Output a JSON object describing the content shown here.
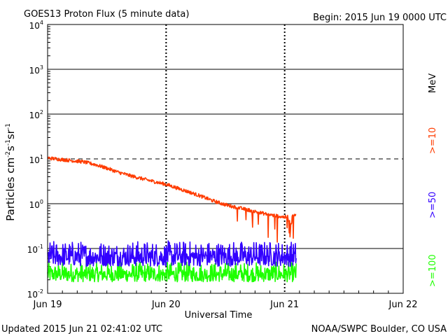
{
  "header": {
    "title": "GOES13 Proton Flux (5 minute data)",
    "begin": "Begin: 2015 Jun 19 0000 UTC"
  },
  "footer": {
    "updated": "Updated 2015 Jun 21 02:41:02 UTC",
    "credit": "NOAA/SWPC Boulder, CO USA"
  },
  "chart_data": {
    "type": "line",
    "title": "GOES13 Proton Flux (5 minute data)",
    "xlabel": "Universal Time",
    "ylabel": "Particles cm-2 s-1 sr-1",
    "yscale": "log",
    "ylim": [
      0.01,
      10000
    ],
    "xlim": [
      0,
      3
    ],
    "x_unit": "days since 2015 Jun 19 0000 UTC",
    "xticks": [
      {
        "x": 0,
        "label": "Jun 19"
      },
      {
        "x": 1,
        "label": "Jun 20"
      },
      {
        "x": 2,
        "label": "Jun 21"
      },
      {
        "x": 3,
        "label": "Jun 22"
      }
    ],
    "yticks": [
      {
        "value": 0.01,
        "base": "10",
        "exp": "-2"
      },
      {
        "value": 0.1,
        "base": "10",
        "exp": "-1"
      },
      {
        "value": 1,
        "base": "10",
        "exp": "0"
      },
      {
        "value": 10,
        "base": "10",
        "exp": "1"
      },
      {
        "value": 100,
        "base": "10",
        "exp": "2"
      },
      {
        "value": 1000,
        "base": "10",
        "exp": "3"
      },
      {
        "value": 10000,
        "base": "10",
        "exp": "4"
      }
    ],
    "threshold_line": {
      "value": 10,
      "style": "dashed"
    },
    "legend": [
      {
        "label": ">=10",
        "color": "#ff3c00",
        "unit": "MeV"
      },
      {
        "label": ">=50",
        "color": "#3200ff"
      },
      {
        "label": ">=100",
        "color": "#1eff00"
      }
    ],
    "series": [
      {
        "name": ">=10 MeV",
        "color": "#ff3c00",
        "x": [
          0,
          0.1,
          0.2,
          0.3,
          0.4,
          0.5,
          0.6,
          0.7,
          0.8,
          0.9,
          1.0,
          1.1,
          1.2,
          1.3,
          1.4,
          1.5,
          1.6,
          1.7,
          1.8,
          1.9,
          2.0,
          2.1
        ],
        "values": [
          10.5,
          9.8,
          9.2,
          8.6,
          7.5,
          6.2,
          5.0,
          4.2,
          3.6,
          3.1,
          2.7,
          2.2,
          1.8,
          1.45,
          1.15,
          0.95,
          0.82,
          0.72,
          0.62,
          0.55,
          0.5,
          0.55
        ],
        "noise": "moderate; strong downward dips after Jun 20 1500 UTC (down to ~0.15)"
      },
      {
        "name": ">=50 MeV",
        "color": "#3200ff",
        "x": [
          0,
          0.5,
          1.0,
          1.5,
          2.1
        ],
        "values": [
          0.06,
          0.06,
          0.06,
          0.06,
          0.06
        ],
        "range": [
          0.04,
          0.15
        ],
        "noise": "fluctuating between ~0.04 and ~0.15"
      },
      {
        "name": ">=100 MeV",
        "color": "#1eff00",
        "x": [
          0,
          0.5,
          1.0,
          1.5,
          2.1
        ],
        "values": [
          0.03,
          0.03,
          0.03,
          0.03,
          0.03
        ],
        "range": [
          0.018,
          0.05
        ],
        "noise": "fluctuating between ~0.018 and ~0.05"
      }
    ]
  }
}
